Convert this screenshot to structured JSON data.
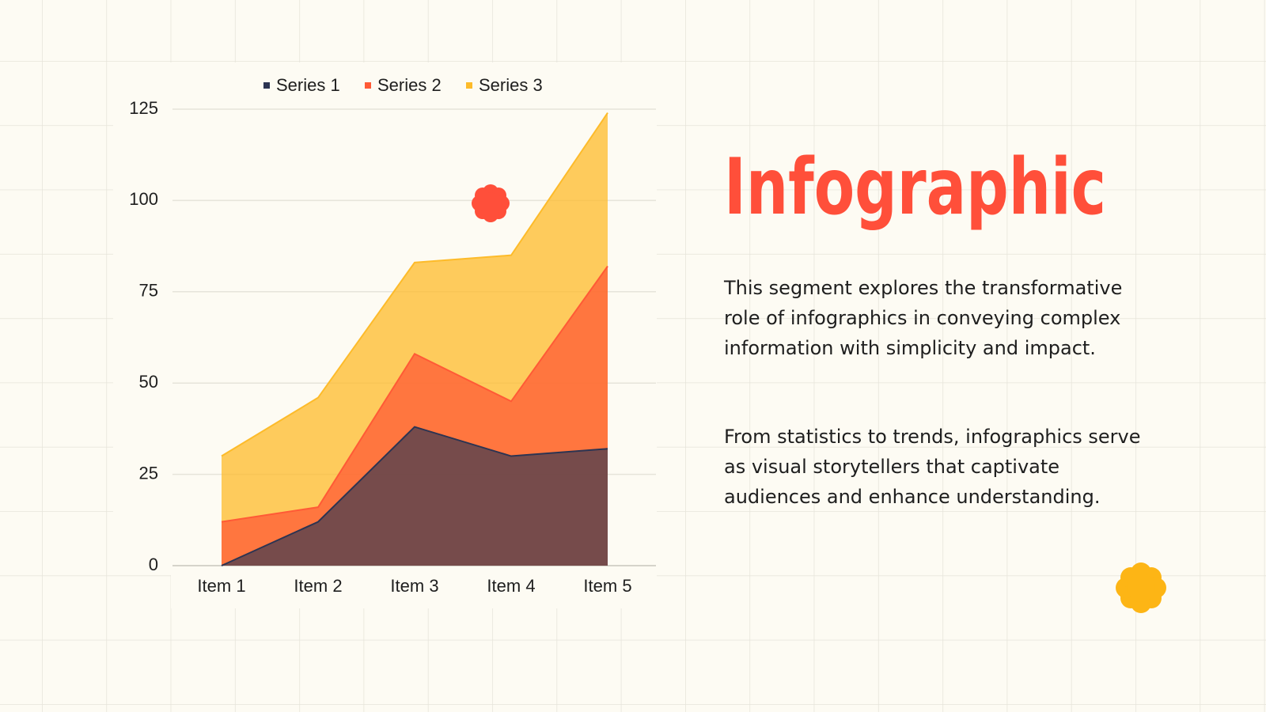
{
  "chart_data": {
    "type": "stacked_area",
    "categories": [
      "Item 1",
      "Item 2",
      "Item 3",
      "Item 4",
      "Item 5"
    ],
    "series": [
      {
        "name": "Series 1",
        "color": "#2c3452",
        "values": [
          0,
          12,
          38,
          30,
          32
        ]
      },
      {
        "name": "Series 2",
        "color": "#ff5a36",
        "values": [
          12,
          4,
          20,
          15,
          50
        ]
      },
      {
        "name": "Series 3",
        "color": "#fdbb2a",
        "values": [
          18,
          30,
          25,
          40,
          42
        ]
      }
    ],
    "ylim": [
      0,
      125
    ],
    "yticks": [
      0,
      25,
      50,
      75,
      100,
      125
    ],
    "grid": true,
    "legend": "top"
  },
  "slide": {
    "title": "Infographic",
    "paragraphs": [
      "This segment explores the transformative role of infographics in conveying complex information with simplicity and impact.",
      "From statistics to trends, infographics serve as visual storytellers that captivate audiences and enhance understanding."
    ]
  }
}
